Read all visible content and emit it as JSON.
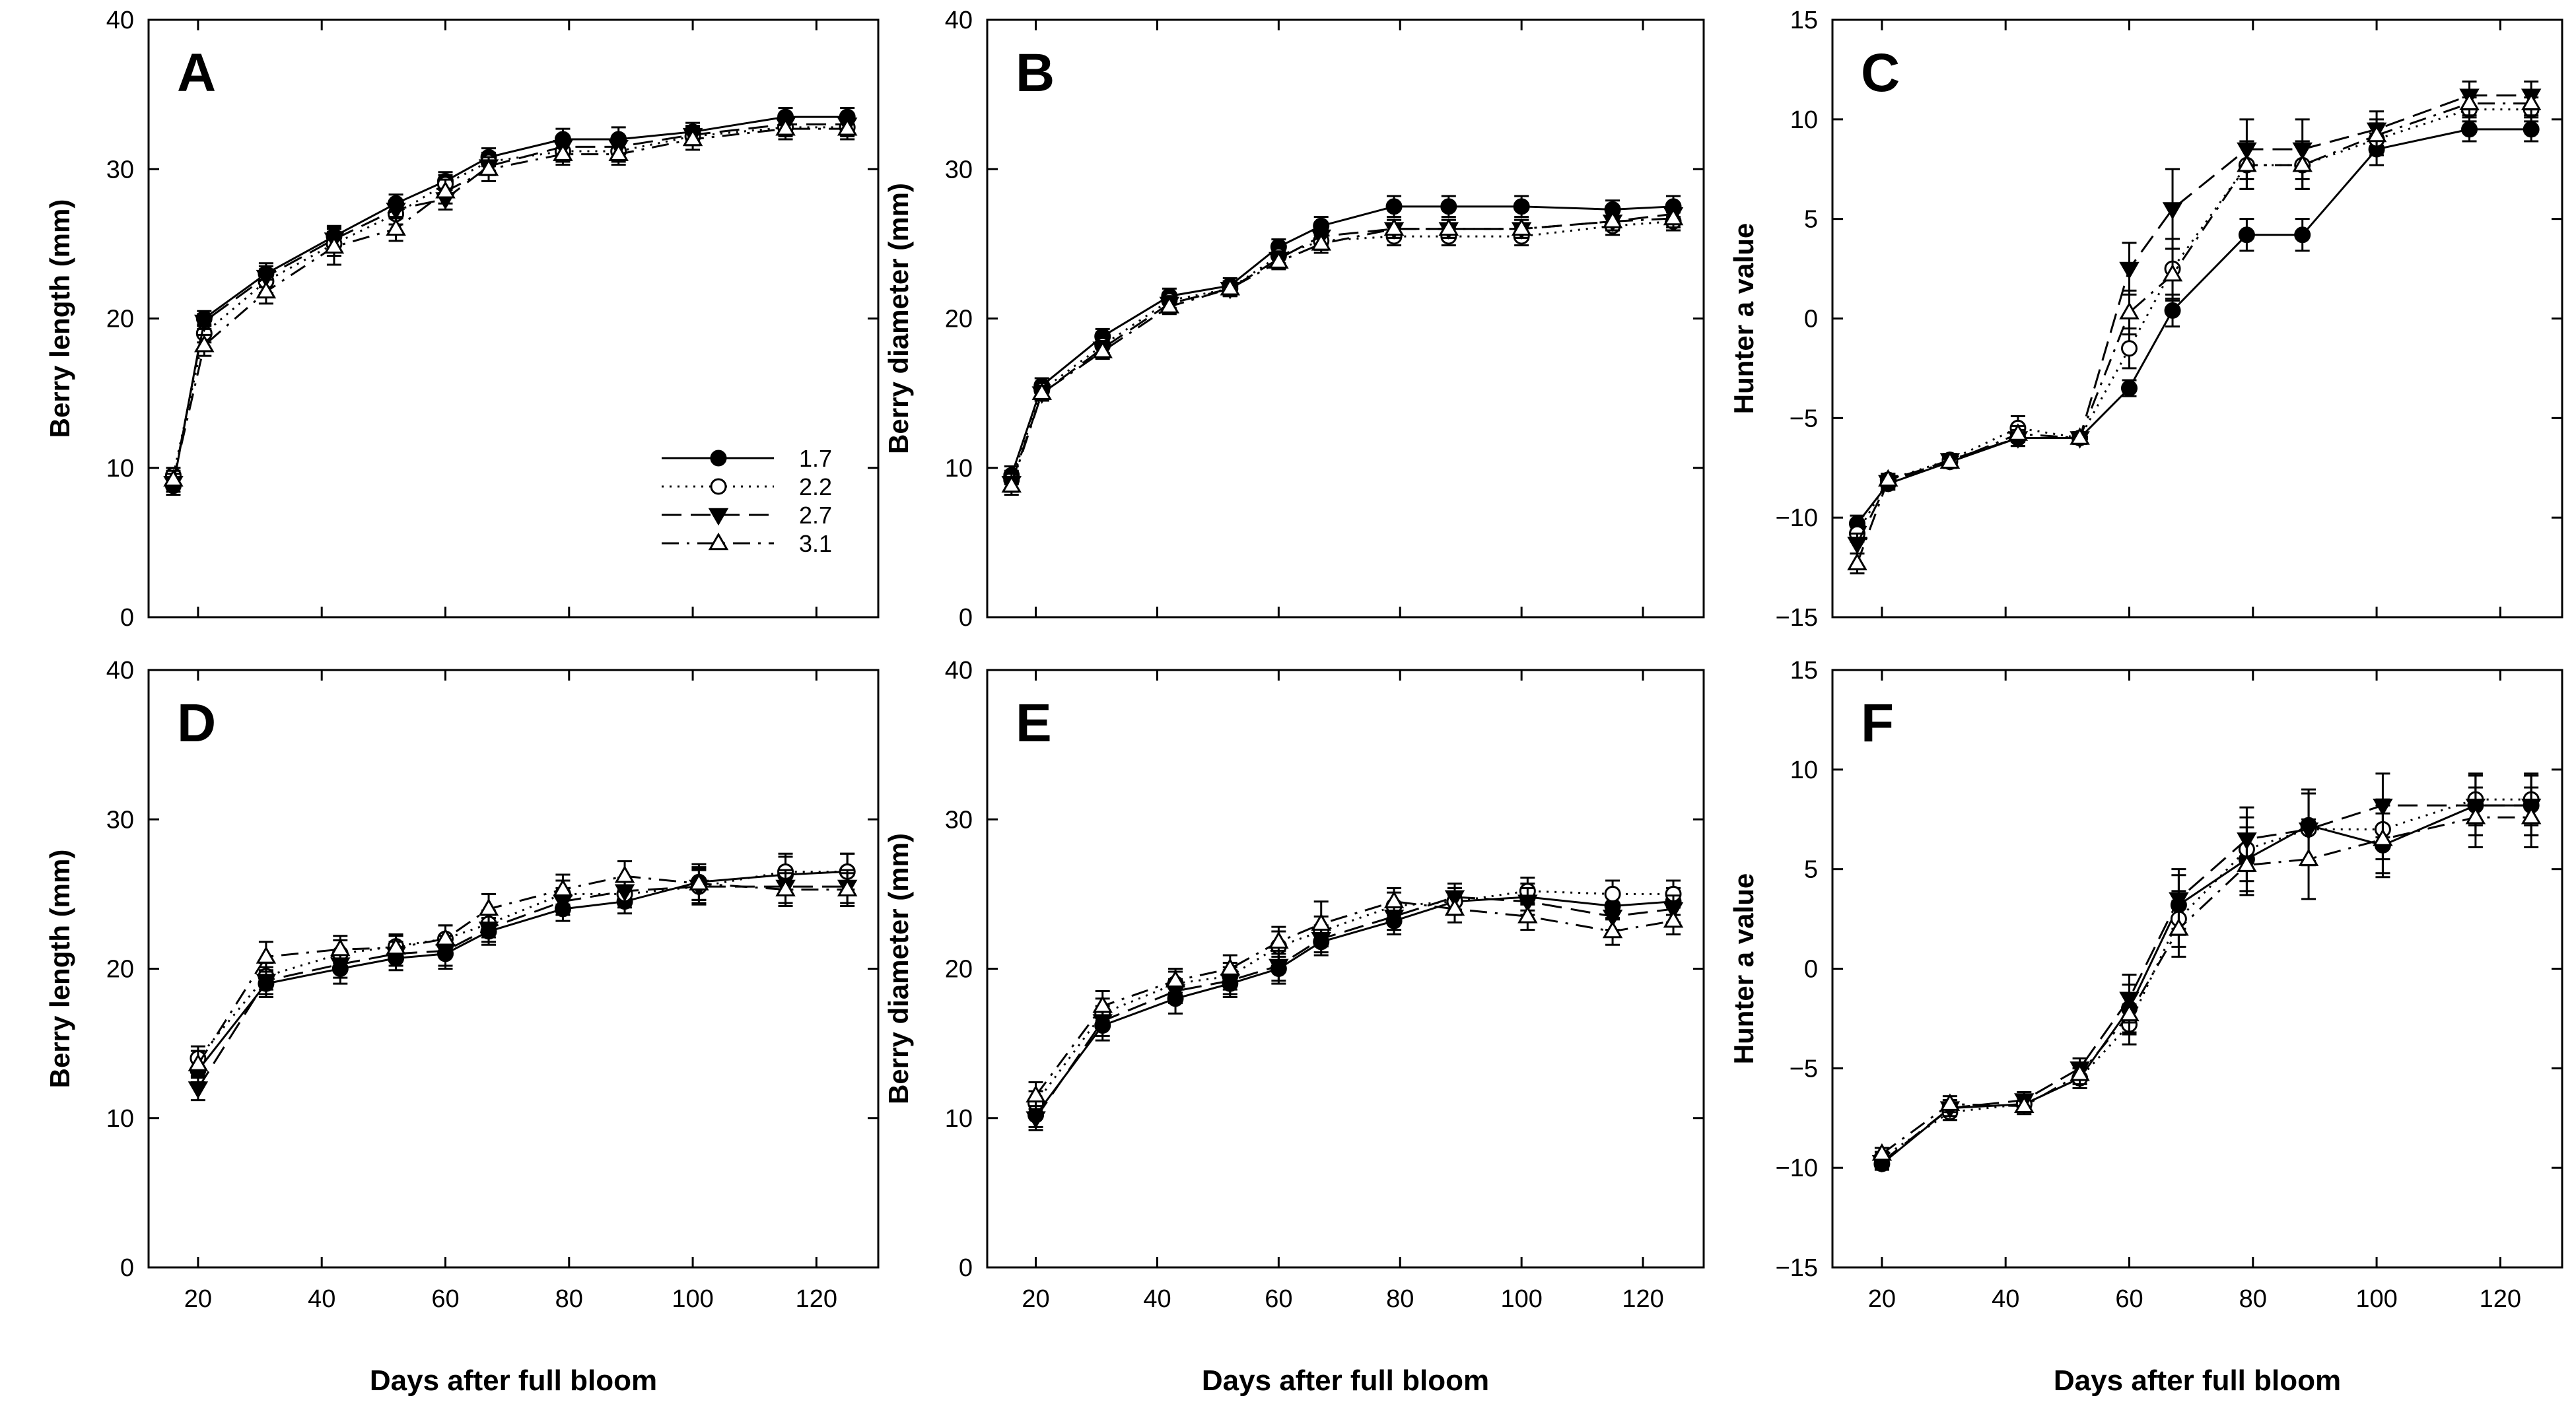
{
  "figure": {
    "xlabel": "Days after full bloom"
  },
  "legend": {
    "entries": [
      "1.7",
      "2.2",
      "2.7",
      "3.1"
    ]
  },
  "series_styles": [
    {
      "name": "1.7",
      "marker": "filled-circle",
      "dash": "solid"
    },
    {
      "name": "2.2",
      "marker": "open-circle",
      "dash": "dotted"
    },
    {
      "name": "2.7",
      "marker": "filled-triangle-down",
      "dash": "dashed"
    },
    {
      "name": "3.1",
      "marker": "open-triangle-up",
      "dash": "dash-dot"
    }
  ],
  "chart_data": [
    {
      "id": "A",
      "type": "line",
      "title": "A",
      "ylabel": "Berry length (mm)",
      "xlabel": "",
      "xlim": [
        12,
        130
      ],
      "xticks": [
        20,
        40,
        60,
        80,
        100,
        120
      ],
      "ylim": [
        0,
        40
      ],
      "yticks": [
        0,
        10,
        20,
        30,
        40
      ],
      "show_legend": true,
      "legend_position": "middle-right",
      "x": [
        16,
        21,
        31,
        42,
        52,
        60,
        67,
        79,
        88,
        100,
        115,
        125
      ],
      "series": [
        {
          "name": "1.7",
          "values": [
            8.8,
            20.0,
            23.0,
            25.5,
            27.7,
            29.2,
            30.8,
            32.0,
            32.0,
            32.5,
            33.5,
            33.5
          ],
          "errors": [
            0.6,
            0.5,
            0.7,
            0.7,
            0.6,
            0.6,
            0.6,
            0.7,
            0.8,
            0.6,
            0.6,
            0.6
          ]
        },
        {
          "name": "2.2",
          "values": [
            9.5,
            19.0,
            22.5,
            25.0,
            27.0,
            29.0,
            30.5,
            31.2,
            31.2,
            32.2,
            32.8,
            32.8
          ],
          "errors": [
            0.5,
            0.6,
            0.8,
            0.8,
            0.7,
            0.6,
            0.6,
            0.7,
            0.7,
            0.6,
            0.6,
            0.6
          ]
        },
        {
          "name": "2.7",
          "values": [
            9.0,
            19.8,
            22.8,
            25.3,
            27.3,
            28.0,
            30.2,
            31.5,
            31.5,
            32.3,
            33.0,
            33.0
          ],
          "errors": [
            0.6,
            0.5,
            0.7,
            0.8,
            0.6,
            0.7,
            0.6,
            0.6,
            0.7,
            0.6,
            0.6,
            0.6
          ]
        },
        {
          "name": "3.1",
          "values": [
            9.2,
            18.2,
            21.8,
            24.8,
            26.0,
            28.5,
            30.0,
            31.0,
            31.0,
            32.0,
            32.7,
            32.7
          ],
          "errors": [
            0.6,
            0.7,
            0.8,
            1.2,
            0.8,
            0.8,
            0.8,
            0.7,
            0.7,
            0.7,
            0.7,
            0.7
          ]
        }
      ]
    },
    {
      "id": "B",
      "type": "line",
      "title": "B",
      "ylabel": "Berry diameter (mm)",
      "xlabel": "",
      "xlim": [
        12,
        130
      ],
      "xticks": [
        20,
        40,
        60,
        80,
        100,
        120
      ],
      "ylim": [
        0,
        40
      ],
      "yticks": [
        0,
        10,
        20,
        30,
        40
      ],
      "show_legend": false,
      "x": [
        16,
        21,
        31,
        42,
        52,
        60,
        67,
        79,
        88,
        100,
        115,
        125
      ],
      "series": [
        {
          "name": "1.7",
          "values": [
            9.5,
            15.5,
            18.8,
            21.5,
            22.2,
            24.8,
            26.2,
            27.5,
            27.5,
            27.5,
            27.3,
            27.5
          ],
          "errors": [
            0.6,
            0.5,
            0.5,
            0.5,
            0.5,
            0.5,
            0.6,
            0.7,
            0.7,
            0.7,
            0.6,
            0.7
          ]
        },
        {
          "name": "2.2",
          "values": [
            9.2,
            15.2,
            18.2,
            21.2,
            22.0,
            24.2,
            25.2,
            25.5,
            25.5,
            25.5,
            26.2,
            26.5
          ],
          "errors": [
            0.6,
            0.5,
            0.5,
            0.5,
            0.5,
            0.5,
            0.6,
            0.6,
            0.6,
            0.6,
            0.6,
            0.6
          ]
        },
        {
          "name": "2.7",
          "values": [
            9.0,
            15.0,
            18.0,
            21.0,
            22.0,
            24.0,
            25.5,
            26.0,
            26.0,
            26.0,
            26.5,
            27.0
          ],
          "errors": [
            0.6,
            0.5,
            0.5,
            0.5,
            0.5,
            0.5,
            0.6,
            0.6,
            0.6,
            0.6,
            0.6,
            0.6
          ]
        },
        {
          "name": "3.1",
          "values": [
            8.8,
            15.0,
            17.8,
            20.8,
            22.0,
            23.8,
            25.0,
            26.0,
            26.0,
            26.0,
            26.5,
            26.7
          ],
          "errors": [
            0.6,
            0.5,
            0.5,
            0.5,
            0.5,
            0.5,
            0.6,
            0.6,
            0.6,
            0.6,
            0.6,
            0.6
          ]
        }
      ]
    },
    {
      "id": "C",
      "type": "line",
      "title": "C",
      "ylabel": "Hunter a value",
      "xlabel": "",
      "xlim": [
        12,
        130
      ],
      "xticks": [
        20,
        40,
        60,
        80,
        100,
        120
      ],
      "ylim": [
        -15,
        15
      ],
      "yticks": [
        -15,
        -10,
        -5,
        0,
        5,
        10,
        15
      ],
      "show_legend": false,
      "x": [
        16,
        21,
        31,
        42,
        52,
        60,
        67,
        79,
        88,
        100,
        115,
        125
      ],
      "series": [
        {
          "name": "1.7",
          "values": [
            -10.3,
            -8.3,
            -7.2,
            -6.0,
            -6.0,
            -3.5,
            0.4,
            4.2,
            4.2,
            8.5,
            9.5,
            9.5
          ],
          "errors": [
            0.4,
            0.3,
            0.3,
            0.4,
            0.3,
            0.4,
            0.8,
            0.8,
            0.8,
            0.8,
            0.6,
            0.6
          ]
        },
        {
          "name": "2.2",
          "values": [
            -10.8,
            -8.1,
            -7.1,
            -5.5,
            -6.0,
            -1.5,
            2.5,
            7.7,
            7.7,
            9.0,
            10.5,
            10.5
          ],
          "errors": [
            0.4,
            0.3,
            0.3,
            0.6,
            0.3,
            1.0,
            1.5,
            1.2,
            1.2,
            0.8,
            0.6,
            0.6
          ]
        },
        {
          "name": "2.7",
          "values": [
            -11.3,
            -8.2,
            -7.1,
            -6.0,
            -6.0,
            2.5,
            5.5,
            8.5,
            8.5,
            9.5,
            11.2,
            11.2
          ],
          "errors": [
            0.5,
            0.3,
            0.3,
            0.4,
            0.3,
            1.3,
            2.0,
            1.5,
            1.5,
            0.9,
            0.7,
            0.7
          ]
        },
        {
          "name": "3.1",
          "values": [
            -12.3,
            -8.1,
            -7.2,
            -5.8,
            -6.0,
            0.3,
            2.2,
            7.7,
            7.7,
            9.2,
            10.8,
            10.8
          ],
          "errors": [
            0.5,
            0.3,
            0.3,
            0.4,
            0.3,
            1.1,
            1.3,
            1.2,
            1.2,
            0.8,
            0.6,
            0.6
          ]
        }
      ]
    },
    {
      "id": "D",
      "type": "line",
      "title": "D",
      "ylabel": "Berry length (mm)",
      "xlabel": "Days after full bloom",
      "xlim": [
        12,
        130
      ],
      "xticks": [
        20,
        40,
        60,
        80,
        100,
        120
      ],
      "ylim": [
        0,
        40
      ],
      "yticks": [
        0,
        10,
        20,
        30,
        40
      ],
      "show_legend": false,
      "x": [
        20,
        31,
        43,
        52,
        60,
        67,
        79,
        89,
        101,
        115,
        125
      ],
      "series": [
        {
          "name": "1.7",
          "values": [
            13.2,
            19.0,
            20.0,
            20.7,
            21.0,
            22.5,
            24.0,
            24.5,
            25.8,
            26.3,
            26.5
          ],
          "errors": [
            0.8,
            0.9,
            1.0,
            0.8,
            1.0,
            0.9,
            0.8,
            0.8,
            1.2,
            1.2,
            1.2
          ]
        },
        {
          "name": "2.2",
          "values": [
            14.0,
            19.5,
            21.0,
            21.5,
            22.0,
            23.0,
            25.0,
            25.0,
            25.5,
            26.5,
            26.5
          ],
          "errors": [
            0.8,
            0.9,
            0.9,
            0.8,
            0.9,
            0.9,
            0.9,
            0.9,
            1.2,
            1.2,
            1.2
          ]
        },
        {
          "name": "2.7",
          "values": [
            12.0,
            19.2,
            20.3,
            21.0,
            21.2,
            22.7,
            24.5,
            25.2,
            25.5,
            25.5,
            25.5
          ],
          "errors": [
            0.8,
            0.9,
            0.9,
            0.8,
            1.0,
            0.9,
            0.9,
            0.9,
            1.1,
            1.1,
            1.1
          ]
        },
        {
          "name": "3.1",
          "values": [
            13.6,
            20.8,
            21.3,
            21.4,
            22.0,
            24.0,
            25.3,
            26.2,
            25.7,
            25.3,
            25.3
          ],
          "errors": [
            0.9,
            1.0,
            0.9,
            0.8,
            0.9,
            1.0,
            1.0,
            1.0,
            1.1,
            1.1,
            1.1
          ]
        }
      ]
    },
    {
      "id": "E",
      "type": "line",
      "title": "E",
      "ylabel": "Berry diameter (mm)",
      "xlabel": "Days after full bloom",
      "xlim": [
        12,
        130
      ],
      "xticks": [
        20,
        40,
        60,
        80,
        100,
        120
      ],
      "ylim": [
        0,
        40
      ],
      "yticks": [
        0,
        10,
        20,
        30,
        40
      ],
      "show_legend": false,
      "x": [
        20,
        31,
        43,
        52,
        60,
        67,
        79,
        89,
        101,
        115,
        125
      ],
      "series": [
        {
          "name": "1.7",
          "values": [
            10.2,
            16.2,
            18.0,
            19.0,
            20.0,
            21.8,
            23.2,
            24.5,
            24.8,
            24.2,
            24.5
          ],
          "errors": [
            0.8,
            1.0,
            1.0,
            0.9,
            1.0,
            0.9,
            0.9,
            0.9,
            0.9,
            0.9,
            0.9
          ]
        },
        {
          "name": "2.2",
          "values": [
            11.0,
            17.0,
            19.0,
            19.5,
            21.5,
            22.5,
            24.2,
            24.5,
            25.2,
            25.0,
            25.0
          ],
          "errors": [
            0.8,
            1.0,
            0.8,
            0.9,
            1.0,
            1.0,
            0.9,
            0.9,
            0.9,
            0.9,
            0.9
          ]
        },
        {
          "name": "2.7",
          "values": [
            10.0,
            16.5,
            18.5,
            19.2,
            20.2,
            22.0,
            23.5,
            24.8,
            24.5,
            23.5,
            24.0
          ],
          "errors": [
            0.8,
            1.0,
            0.8,
            0.9,
            1.0,
            0.9,
            0.9,
            0.9,
            0.9,
            0.9,
            0.9
          ]
        },
        {
          "name": "3.1",
          "values": [
            11.5,
            17.5,
            19.2,
            20.0,
            21.8,
            23.0,
            24.5,
            24.0,
            23.5,
            22.5,
            23.2
          ],
          "errors": [
            0.9,
            1.0,
            0.8,
            0.9,
            1.0,
            1.5,
            0.9,
            0.9,
            0.9,
            0.9,
            0.9
          ]
        }
      ]
    },
    {
      "id": "F",
      "type": "line",
      "title": "F",
      "ylabel": "Hunter a value",
      "xlabel": "Days after full bloom",
      "xlim": [
        12,
        130
      ],
      "xticks": [
        20,
        40,
        60,
        80,
        100,
        120
      ],
      "ylim": [
        -15,
        15
      ],
      "yticks": [
        -15,
        -10,
        -5,
        0,
        5,
        10,
        15
      ],
      "show_legend": false,
      "x": [
        20,
        31,
        43,
        52,
        60,
        68,
        79,
        89,
        101,
        116,
        125
      ],
      "series": [
        {
          "name": "1.7",
          "values": [
            -9.8,
            -7.0,
            -6.8,
            -5.5,
            -2.0,
            3.2,
            5.5,
            7.2,
            6.2,
            8.2,
            8.2
          ],
          "errors": [
            0.3,
            0.4,
            0.4,
            0.5,
            1.2,
            1.5,
            1.6,
            1.8,
            1.6,
            1.5,
            1.5
          ]
        },
        {
          "name": "2.2",
          "values": [
            -9.5,
            -7.2,
            -6.8,
            -5.5,
            -2.8,
            2.5,
            6.0,
            7.0,
            7.0,
            8.5,
            8.5
          ],
          "errors": [
            0.3,
            0.4,
            0.4,
            0.5,
            1.0,
            1.4,
            1.6,
            1.8,
            1.5,
            1.3,
            1.3
          ]
        },
        {
          "name": "2.7",
          "values": [
            -9.7,
            -7.0,
            -6.6,
            -5.0,
            -1.5,
            3.5,
            6.5,
            7.0,
            8.2,
            8.2,
            8.2
          ],
          "errors": [
            0.3,
            0.4,
            0.4,
            0.5,
            1.2,
            1.5,
            1.6,
            1.8,
            1.6,
            1.5,
            1.5
          ]
        },
        {
          "name": "3.1",
          "values": [
            -9.3,
            -6.8,
            -6.9,
            -5.3,
            -2.3,
            2.0,
            5.2,
            5.5,
            6.5,
            7.6,
            7.6
          ],
          "errors": [
            0.3,
            0.4,
            0.4,
            0.5,
            1.0,
            1.4,
            1.5,
            2.0,
            1.7,
            1.5,
            1.5
          ]
        }
      ]
    }
  ]
}
